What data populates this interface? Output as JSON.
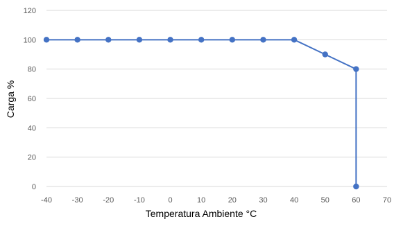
{
  "chart_data": {
    "type": "line",
    "xlabel": "Temperatura Ambiente °C",
    "ylabel": "Carga %",
    "xlim": [
      -40,
      70
    ],
    "ylim": [
      0,
      120
    ],
    "x_ticks": [
      "-40",
      "-30",
      "-20",
      "-10",
      "0",
      "10",
      "20",
      "30",
      "40",
      "50",
      "60",
      "70"
    ],
    "y_ticks": [
      "0",
      "20",
      "40",
      "60",
      "80",
      "100",
      "120"
    ],
    "grid": true,
    "series": [
      {
        "points": [
          {
            "x": -40,
            "y": 100
          },
          {
            "x": -30,
            "y": 100
          },
          {
            "x": -20,
            "y": 100
          },
          {
            "x": -10,
            "y": 100
          },
          {
            "x": 0,
            "y": 100
          },
          {
            "x": 10,
            "y": 100
          },
          {
            "x": 20,
            "y": 100
          },
          {
            "x": 30,
            "y": 100
          },
          {
            "x": 40,
            "y": 100
          },
          {
            "x": 50,
            "y": 90
          },
          {
            "x": 60,
            "y": 80
          },
          {
            "x": 60,
            "y": 0
          }
        ]
      }
    ],
    "colors": {
      "series": "#4472C4",
      "grid": "#D9D9D9",
      "tick_text": "#595959"
    }
  }
}
